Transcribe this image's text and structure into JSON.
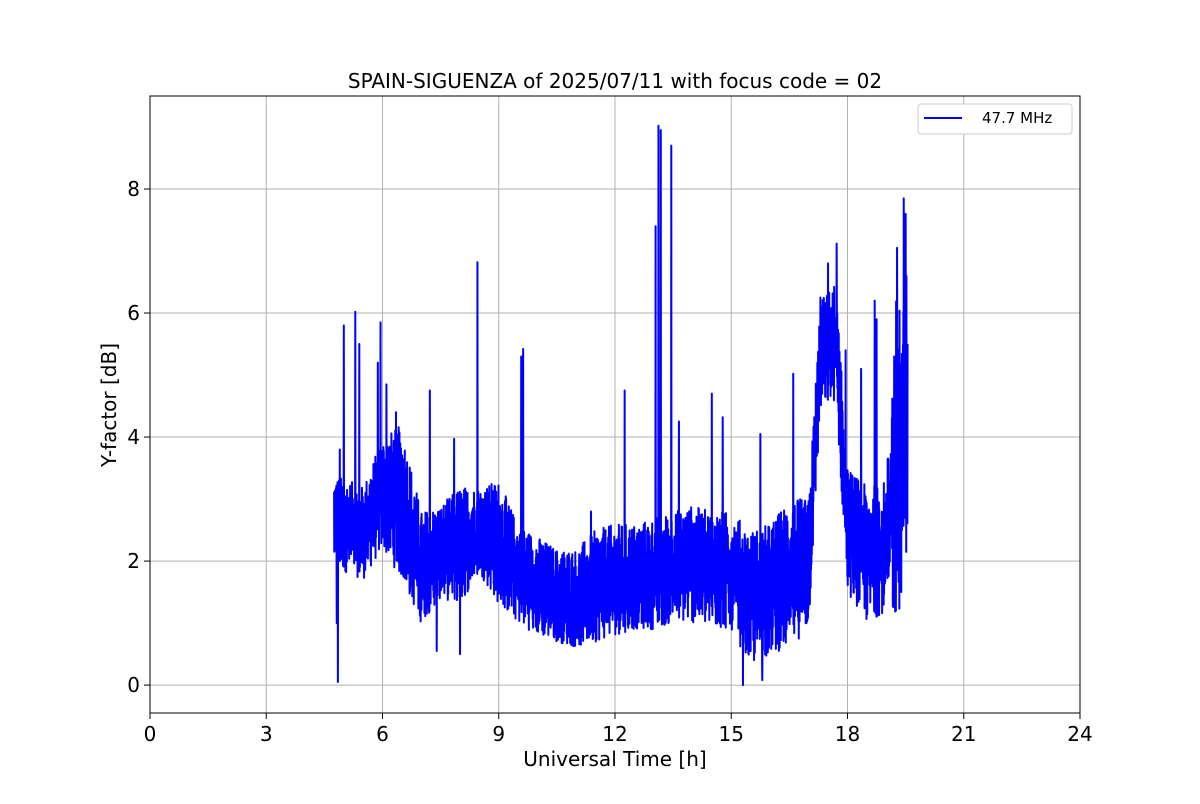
{
  "chart_data": {
    "type": "line",
    "title": "SPAIN-SIGUENZA of 2025/07/11 with focus code = 02",
    "xlabel": "Universal Time [h]",
    "ylabel": "Y-factor [dB]",
    "xlim": [
      0,
      24
    ],
    "ylim": [
      -0.45,
      9.5
    ],
    "xticks": [
      0,
      3,
      6,
      9,
      12,
      15,
      18,
      21,
      24
    ],
    "yticks": [
      0,
      2,
      4,
      6,
      8
    ],
    "grid": true,
    "legend_position": "top-right",
    "series": [
      {
        "name": "47.7 MHz",
        "color": "#0000ff",
        "data_start_h": 4.75,
        "data_end_h": 19.55,
        "envelope_x": [
          4.75,
          5.5,
          6.0,
          6.5,
          7.0,
          7.5,
          8.0,
          8.5,
          9.0,
          9.5,
          10.0,
          10.5,
          11.0,
          11.5,
          12.0,
          12.5,
          13.0,
          13.5,
          14.0,
          14.5,
          15.0,
          15.5,
          16.0,
          16.5,
          17.0,
          17.3,
          17.7,
          18.0,
          18.5,
          19.0,
          19.3,
          19.55
        ],
        "envelope_lower": [
          1.9,
          1.7,
          2.2,
          1.7,
          1.0,
          1.4,
          1.3,
          1.8,
          1.3,
          1.0,
          0.8,
          0.7,
          0.6,
          0.7,
          0.8,
          0.9,
          0.9,
          1.0,
          1.0,
          0.9,
          0.9,
          0.3,
          0.5,
          0.6,
          0.9,
          4.4,
          4.6,
          1.5,
          1.0,
          1.2,
          1.0,
          2.3
        ],
        "envelope_upper": [
          3.4,
          3.2,
          4.0,
          4.2,
          2.8,
          2.9,
          3.2,
          3.2,
          3.3,
          2.6,
          2.4,
          2.2,
          2.2,
          2.5,
          2.6,
          2.6,
          2.7,
          2.8,
          2.9,
          2.8,
          2.8,
          2.5,
          2.6,
          3.0,
          3.0,
          6.2,
          6.5,
          3.5,
          3.2,
          3.3,
          6.8,
          5.5
        ],
        "spikes": [
          [
            4.85,
            0.05
          ],
          [
            4.82,
            1.0
          ],
          [
            4.9,
            3.8
          ],
          [
            5.0,
            5.8
          ],
          [
            5.3,
            6.02
          ],
          [
            5.4,
            5.5
          ],
          [
            5.88,
            5.2
          ],
          [
            5.95,
            5.85
          ],
          [
            6.1,
            4.85
          ],
          [
            6.35,
            4.4
          ],
          [
            7.22,
            4.75
          ],
          [
            7.4,
            0.55
          ],
          [
            7.85,
            3.97
          ],
          [
            8.0,
            0.5
          ],
          [
            8.45,
            6.82
          ],
          [
            9.58,
            5.3
          ],
          [
            9.63,
            5.42
          ],
          [
            11.38,
            2.8
          ],
          [
            12.25,
            4.75
          ],
          [
            13.05,
            7.4
          ],
          [
            13.12,
            9.02
          ],
          [
            13.18,
            8.95
          ],
          [
            13.45,
            8.7
          ],
          [
            13.65,
            4.25
          ],
          [
            14.5,
            4.7
          ],
          [
            14.78,
            4.32
          ],
          [
            15.3,
            0.0
          ],
          [
            15.75,
            4.05
          ],
          [
            15.8,
            0.08
          ],
          [
            16.6,
            5.02
          ],
          [
            17.3,
            6.25
          ],
          [
            17.5,
            6.8
          ],
          [
            17.72,
            7.12
          ],
          [
            17.95,
            5.4
          ],
          [
            18.35,
            5.1
          ],
          [
            18.7,
            6.2
          ],
          [
            18.75,
            5.9
          ],
          [
            19.28,
            7.05
          ],
          [
            19.45,
            7.85
          ],
          [
            19.5,
            7.6
          ],
          [
            19.52,
            6.6
          ],
          [
            19.55,
            5.5
          ]
        ]
      }
    ]
  }
}
